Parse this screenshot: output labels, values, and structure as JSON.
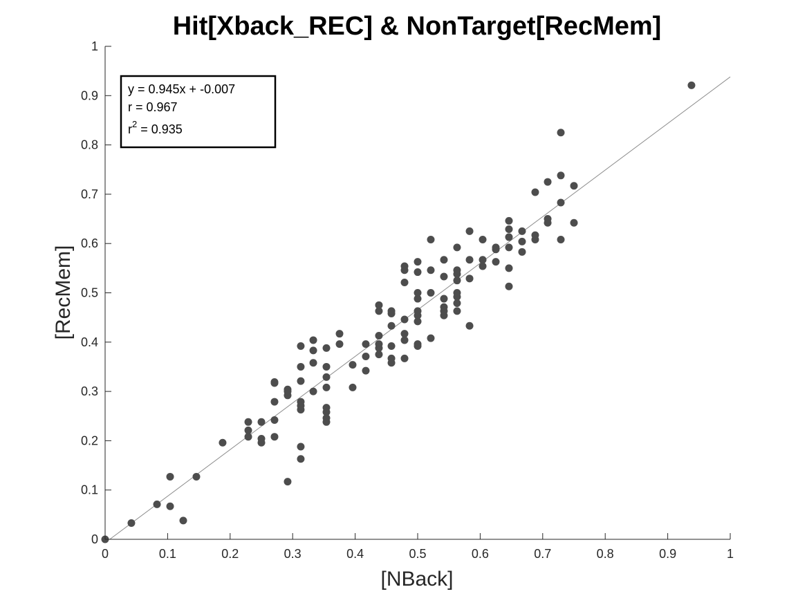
{
  "chart_data": {
    "type": "scatter",
    "title": "Hit[Xback_REC] & NonTarget[RecMem]",
    "xlabel": "[NBack]",
    "ylabel": "[RecMem]",
    "xlim": [
      0,
      1
    ],
    "ylim": [
      0,
      1
    ],
    "xticks": [
      "0",
      "0.1",
      "0.2",
      "0.3",
      "0.4",
      "0.5",
      "0.6",
      "0.7",
      "0.8",
      "0.9",
      "1"
    ],
    "yticks": [
      "0",
      "0.1",
      "0.2",
      "0.3",
      "0.4",
      "0.5",
      "0.6",
      "0.7",
      "0.8",
      "0.9",
      "1"
    ],
    "grid": false,
    "marker_color": "#4d4d4d",
    "fit_line_color": "#8c8c8c",
    "fit": {
      "slope": 0.945,
      "intercept": -0.007
    },
    "stats": {
      "equation": "y = 0.945x + -0.007",
      "r": "r = 0.967",
      "r2_base": "r",
      "r2_sup": "2",
      "r2_value": " = 0.935"
    },
    "points": [
      [
        0,
        0
      ],
      [
        0.042,
        0.033
      ],
      [
        0.083,
        0.071
      ],
      [
        0.104,
        0.127
      ],
      [
        0.104,
        0.067
      ],
      [
        0.125,
        0.038
      ],
      [
        0.146,
        0.127
      ],
      [
        0.188,
        0.196
      ],
      [
        0.229,
        0.208
      ],
      [
        0.229,
        0.221
      ],
      [
        0.229,
        0.238
      ],
      [
        0.25,
        0.196
      ],
      [
        0.25,
        0.204
      ],
      [
        0.25,
        0.238
      ],
      [
        0.271,
        0.208
      ],
      [
        0.271,
        0.242
      ],
      [
        0.271,
        0.279
      ],
      [
        0.271,
        0.317
      ],
      [
        0.271,
        0.319
      ],
      [
        0.292,
        0.117
      ],
      [
        0.292,
        0.292
      ],
      [
        0.292,
        0.3
      ],
      [
        0.292,
        0.304
      ],
      [
        0.313,
        0.163
      ],
      [
        0.313,
        0.188
      ],
      [
        0.313,
        0.263
      ],
      [
        0.313,
        0.271
      ],
      [
        0.313,
        0.279
      ],
      [
        0.313,
        0.321
      ],
      [
        0.313,
        0.35
      ],
      [
        0.313,
        0.392
      ],
      [
        0.333,
        0.3
      ],
      [
        0.333,
        0.358
      ],
      [
        0.333,
        0.383
      ],
      [
        0.333,
        0.404
      ],
      [
        0.354,
        0.238
      ],
      [
        0.354,
        0.246
      ],
      [
        0.354,
        0.258
      ],
      [
        0.354,
        0.267
      ],
      [
        0.354,
        0.308
      ],
      [
        0.354,
        0.329
      ],
      [
        0.354,
        0.35
      ],
      [
        0.354,
        0.388
      ],
      [
        0.375,
        0.396
      ],
      [
        0.375,
        0.417
      ],
      [
        0.396,
        0.308
      ],
      [
        0.396,
        0.354
      ],
      [
        0.417,
        0.342
      ],
      [
        0.417,
        0.371
      ],
      [
        0.417,
        0.396
      ],
      [
        0.438,
        0.375
      ],
      [
        0.438,
        0.388
      ],
      [
        0.438,
        0.396
      ],
      [
        0.438,
        0.413
      ],
      [
        0.438,
        0.463
      ],
      [
        0.438,
        0.475
      ],
      [
        0.458,
        0.358
      ],
      [
        0.458,
        0.367
      ],
      [
        0.458,
        0.392
      ],
      [
        0.458,
        0.433
      ],
      [
        0.458,
        0.458
      ],
      [
        0.458,
        0.463
      ],
      [
        0.479,
        0.367
      ],
      [
        0.479,
        0.404
      ],
      [
        0.479,
        0.417
      ],
      [
        0.479,
        0.446
      ],
      [
        0.479,
        0.521
      ],
      [
        0.479,
        0.546
      ],
      [
        0.479,
        0.554
      ],
      [
        0.5,
        0.392
      ],
      [
        0.5,
        0.396
      ],
      [
        0.5,
        0.442
      ],
      [
        0.5,
        0.454
      ],
      [
        0.5,
        0.463
      ],
      [
        0.5,
        0.488
      ],
      [
        0.5,
        0.5
      ],
      [
        0.5,
        0.542
      ],
      [
        0.5,
        0.563
      ],
      [
        0.521,
        0.408
      ],
      [
        0.521,
        0.5
      ],
      [
        0.521,
        0.546
      ],
      [
        0.521,
        0.608
      ],
      [
        0.542,
        0.454
      ],
      [
        0.542,
        0.463
      ],
      [
        0.542,
        0.471
      ],
      [
        0.542,
        0.488
      ],
      [
        0.542,
        0.533
      ],
      [
        0.542,
        0.567
      ],
      [
        0.563,
        0.463
      ],
      [
        0.563,
        0.479
      ],
      [
        0.563,
        0.492
      ],
      [
        0.563,
        0.5
      ],
      [
        0.563,
        0.525
      ],
      [
        0.563,
        0.538
      ],
      [
        0.563,
        0.546
      ],
      [
        0.563,
        0.592
      ],
      [
        0.583,
        0.433
      ],
      [
        0.583,
        0.529
      ],
      [
        0.583,
        0.567
      ],
      [
        0.583,
        0.625
      ],
      [
        0.604,
        0.554
      ],
      [
        0.604,
        0.567
      ],
      [
        0.604,
        0.608
      ],
      [
        0.625,
        0.563
      ],
      [
        0.625,
        0.588
      ],
      [
        0.625,
        0.592
      ],
      [
        0.646,
        0.513
      ],
      [
        0.646,
        0.55
      ],
      [
        0.646,
        0.592
      ],
      [
        0.646,
        0.613
      ],
      [
        0.646,
        0.629
      ],
      [
        0.646,
        0.646
      ],
      [
        0.667,
        0.583
      ],
      [
        0.667,
        0.604
      ],
      [
        0.667,
        0.625
      ],
      [
        0.688,
        0.608
      ],
      [
        0.688,
        0.617
      ],
      [
        0.688,
        0.704
      ],
      [
        0.708,
        0.642
      ],
      [
        0.708,
        0.65
      ],
      [
        0.708,
        0.725
      ],
      [
        0.729,
        0.608
      ],
      [
        0.729,
        0.683
      ],
      [
        0.729,
        0.738
      ],
      [
        0.729,
        0.825
      ],
      [
        0.75,
        0.642
      ],
      [
        0.75,
        0.717
      ],
      [
        0.938,
        0.921
      ]
    ]
  }
}
